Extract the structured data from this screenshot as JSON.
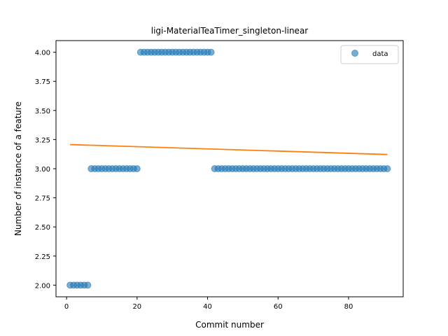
{
  "chart_data": {
    "type": "scatter",
    "title": "ligi-MaterialTeaTimer_singleton-linear",
    "xlabel": "Commit number",
    "ylabel": "Number of instance of a feature",
    "xlim": [
      -3,
      95.5
    ],
    "ylim": [
      1.9,
      4.1
    ],
    "xticks": [
      0,
      20,
      40,
      60,
      80
    ],
    "xtick_labels": [
      "0",
      "20",
      "40",
      "60",
      "80"
    ],
    "yticks": [
      2.0,
      2.25,
      2.5,
      2.75,
      3.0,
      3.25,
      3.5,
      3.75,
      4.0
    ],
    "ytick_labels": [
      "2.00",
      "2.25",
      "2.50",
      "2.75",
      "3.00",
      "3.25",
      "3.50",
      "3.75",
      "4.00"
    ],
    "grid": false,
    "legend_position": "top-right",
    "series": [
      {
        "name": "data",
        "kind": "scatter",
        "color": "#1f77b4",
        "segments": [
          {
            "x_start": 1,
            "x_end": 6,
            "y": 2.0
          },
          {
            "x_start": 7,
            "x_end": 20,
            "y": 3.0
          },
          {
            "x_start": 21,
            "x_end": 41,
            "y": 4.0
          },
          {
            "x_start": 42,
            "x_end": 91,
            "y": 3.0
          }
        ]
      },
      {
        "kind": "line",
        "color": "#ff7f0e",
        "x": [
          1,
          91
        ],
        "y": [
          3.207,
          3.122
        ]
      }
    ]
  }
}
